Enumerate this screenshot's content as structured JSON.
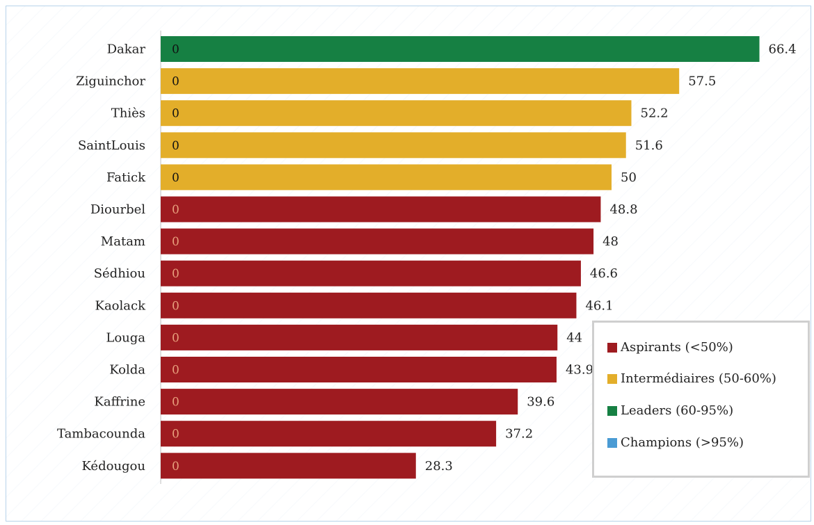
{
  "chart_data": {
    "type": "bar",
    "orientation": "horizontal",
    "categories": [
      "Dakar",
      "Ziguinchor",
      "Thiès",
      "SaintLouis",
      "Fatick",
      "Diourbel",
      "Matam",
      "Sédhiou",
      "Kaolack",
      "Louga",
      "Kolda",
      "Kaffrine",
      "Tambacounda",
      "Kédougou"
    ],
    "values": [
      66.4,
      57.5,
      52.2,
      51.6,
      50,
      48.8,
      48,
      46.6,
      46.1,
      44,
      43.9,
      39.6,
      37.2,
      28.3
    ],
    "value_labels": [
      "66.4",
      "57.5",
      "52.2",
      "51.6",
      "50",
      "48.8",
      "48",
      "46.6",
      "46.1",
      "44",
      "43.9",
      "39.6",
      "37.2",
      "28.3"
    ],
    "inner_labels": [
      "0",
      "0",
      "0",
      "0",
      "0",
      "0",
      "0",
      "0",
      "0",
      "0",
      "0",
      "0",
      "0",
      "0"
    ],
    "groups": [
      "leaders",
      "intermediaires",
      "intermediaires",
      "intermediaires",
      "intermediaires",
      "aspirants",
      "aspirants",
      "aspirants",
      "aspirants",
      "aspirants",
      "aspirants",
      "aspirants",
      "aspirants",
      "aspirants"
    ],
    "colors": {
      "aspirants": "#9e1b20",
      "intermediaires": "#e3ae2a",
      "leaders": "#168043",
      "champions": "#4a9bd4"
    },
    "xlim": [
      0,
      70
    ],
    "legend": {
      "position": "bottom-right",
      "items": [
        {
          "key": "aspirants",
          "label": "Aspirants (<50%)"
        },
        {
          "key": "intermediaires",
          "label": "Intermédiaires (50-60%)"
        },
        {
          "key": "leaders",
          "label": "Leaders (60-95%)"
        },
        {
          "key": "champions",
          "label": "Champions (>95%)"
        }
      ]
    }
  }
}
